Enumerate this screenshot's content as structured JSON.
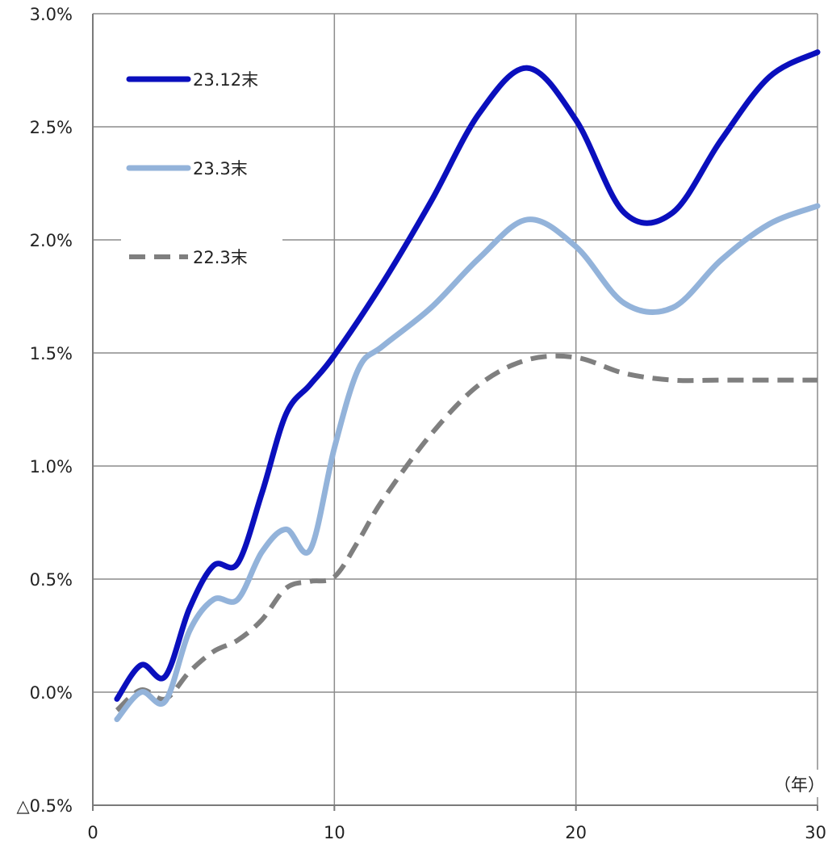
{
  "chart_data": {
    "type": "line",
    "xlim": [
      0,
      30
    ],
    "ylim": [
      -0.5,
      3.0
    ],
    "x_ticks": [
      0,
      10,
      20,
      30
    ],
    "x_tick_labels": [
      "0",
      "10",
      "20",
      "30"
    ],
    "y_ticks": [
      -0.5,
      0.0,
      0.5,
      1.0,
      1.5,
      2.0,
      2.5,
      3.0
    ],
    "y_tick_labels": [
      "△0.5%",
      "0.0%",
      "0.5%",
      "1.0%",
      "1.5%",
      "2.0%",
      "2.5%",
      "3.0%"
    ],
    "x_unit_label": "（年）",
    "grid": true,
    "legend_placement": "top-left",
    "series": [
      {
        "name": "23.12末",
        "color": "#0a0fbd",
        "style": "solid",
        "x": [
          1,
          2,
          3,
          4,
          5,
          6,
          7,
          8,
          9,
          10,
          12,
          14,
          16,
          18,
          20,
          22,
          24,
          26,
          28,
          30
        ],
        "y": [
          -0.03,
          0.12,
          0.07,
          0.37,
          0.56,
          0.57,
          0.88,
          1.23,
          1.36,
          1.49,
          1.81,
          2.17,
          2.56,
          2.76,
          2.53,
          2.12,
          2.12,
          2.44,
          2.72,
          2.83
        ]
      },
      {
        "name": "23.3末",
        "color": "#93b3da",
        "style": "solid",
        "x": [
          1,
          2,
          3,
          4,
          5,
          6,
          7,
          8,
          9,
          10,
          11,
          12,
          14,
          16,
          18,
          20,
          22,
          24,
          26,
          28,
          30
        ],
        "y": [
          -0.12,
          0.0,
          -0.04,
          0.27,
          0.41,
          0.41,
          0.62,
          0.72,
          0.63,
          1.08,
          1.43,
          1.53,
          1.7,
          1.92,
          2.09,
          1.97,
          1.72,
          1.7,
          1.91,
          2.07,
          2.15
        ]
      },
      {
        "name": "22.3末",
        "color": "#7f7f7f",
        "style": "dashed",
        "x": [
          1,
          2,
          3,
          4,
          5,
          6,
          7,
          8,
          9,
          10,
          11,
          12,
          14,
          16,
          18,
          20,
          22,
          24,
          26,
          28,
          30
        ],
        "y": [
          -0.08,
          0.01,
          -0.03,
          0.09,
          0.18,
          0.23,
          0.32,
          0.46,
          0.49,
          0.51,
          0.67,
          0.85,
          1.14,
          1.36,
          1.47,
          1.48,
          1.41,
          1.38,
          1.38,
          1.38,
          1.38
        ]
      }
    ]
  }
}
